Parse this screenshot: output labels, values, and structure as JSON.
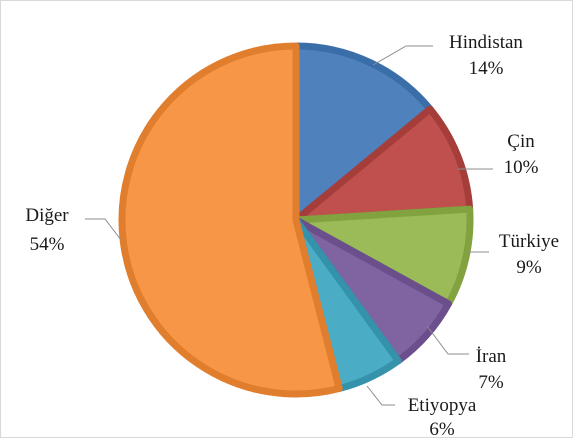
{
  "chart_data": {
    "type": "pie",
    "title": "",
    "legend": "none",
    "slices": [
      {
        "label": "Hindistan",
        "value": 14,
        "value_label": "14%",
        "color": "#4f81bd",
        "border": "#3a6ea8"
      },
      {
        "label": "Çin",
        "value": 10,
        "value_label": "10%",
        "color": "#c0504d",
        "border": "#a53e3b"
      },
      {
        "label": "Türkiye",
        "value": 9,
        "value_label": "9%",
        "color": "#9bbb59",
        "border": "#82a13f"
      },
      {
        "label": "İran",
        "value": 7,
        "value_label": "7%",
        "color": "#8064a2",
        "border": "#6a4f8c"
      },
      {
        "label": "Etiyopya",
        "value": 6,
        "value_label": "6%",
        "color": "#4bacc6",
        "border": "#3592ab"
      },
      {
        "label": "Diğer",
        "value": 54,
        "value_label": "54%",
        "color": "#f79646",
        "border": "#e07e2e"
      }
    ]
  }
}
